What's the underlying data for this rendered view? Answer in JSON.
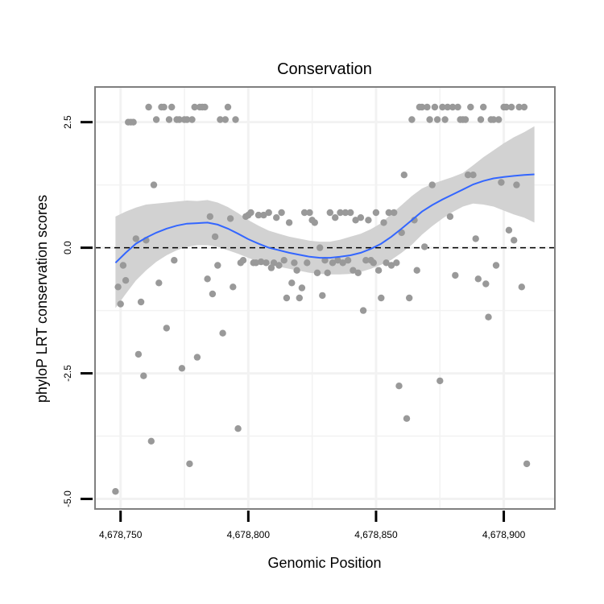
{
  "chart_data": {
    "type": "scatter",
    "title": "Conservation",
    "xlabel": "Genomic Position",
    "ylabel": "phyloP LRT conservation scores",
    "xlim": [
      4678740,
      4678920
    ],
    "ylim": [
      -5.2,
      3.2
    ],
    "x_ticks": [
      {
        "value": 4678750,
        "label": "4,678,750"
      },
      {
        "value": 4678800,
        "label": "4,678,800"
      },
      {
        "value": 4678850,
        "label": "4,678,850"
      },
      {
        "value": 4678900,
        "label": "4,678,900"
      }
    ],
    "y_ticks": [
      {
        "value": -5.0,
        "label": "-5.0"
      },
      {
        "value": -2.5,
        "label": "-2.5"
      },
      {
        "value": 0.0,
        "label": "0.0"
      },
      {
        "value": 2.5,
        "label": "2.5"
      }
    ],
    "grid": true,
    "reference_line": {
      "y": 0,
      "style": "dashed"
    },
    "colors": {
      "points": "#999999",
      "smooth": "#3366ff",
      "band": "#d2d2d2",
      "panel_border": "#7f7f7f",
      "grid": "#f2f2f2"
    },
    "points": [
      [
        4678748,
        -4.85
      ],
      [
        4678749,
        -0.78
      ],
      [
        4678750,
        -1.12
      ],
      [
        4678751,
        -0.35
      ],
      [
        4678752,
        -0.65
      ],
      [
        4678753,
        2.5
      ],
      [
        4678754,
        2.5
      ],
      [
        4678755,
        2.5
      ],
      [
        4678756,
        0.18
      ],
      [
        4678757,
        -2.12
      ],
      [
        4678758,
        -1.08
      ],
      [
        4678759,
        -2.55
      ],
      [
        4678760,
        0.15
      ],
      [
        4678761,
        2.8
      ],
      [
        4678762,
        -3.85
      ],
      [
        4678763,
        1.25
      ],
      [
        4678764,
        2.55
      ],
      [
        4678765,
        -0.7
      ],
      [
        4678766,
        2.8
      ],
      [
        4678767,
        2.8
      ],
      [
        4678768,
        -1.6
      ],
      [
        4678769,
        2.55
      ],
      [
        4678770,
        2.8
      ],
      [
        4678771,
        -0.25
      ],
      [
        4678772,
        2.55
      ],
      [
        4678773,
        2.55
      ],
      [
        4678774,
        -2.4
      ],
      [
        4678775,
        2.55
      ],
      [
        4678776,
        2.55
      ],
      [
        4678777,
        -4.3
      ],
      [
        4678778,
        2.55
      ],
      [
        4678779,
        2.8
      ],
      [
        4678780,
        -2.18
      ],
      [
        4678781,
        2.8
      ],
      [
        4678782,
        2.8
      ],
      [
        4678783,
        2.8
      ],
      [
        4678784,
        -0.62
      ],
      [
        4678785,
        0.62
      ],
      [
        4678786,
        -0.92
      ],
      [
        4678787,
        0.22
      ],
      [
        4678788,
        -0.35
      ],
      [
        4678789,
        2.55
      ],
      [
        4678790,
        -1.7
      ],
      [
        4678791,
        2.55
      ],
      [
        4678792,
        2.8
      ],
      [
        4678793,
        0.58
      ],
      [
        4678794,
        -0.78
      ],
      [
        4678795,
        2.55
      ],
      [
        4678796,
        -3.6
      ],
      [
        4678797,
        -0.3
      ],
      [
        4678798,
        -0.25
      ],
      [
        4678799,
        0.62
      ],
      [
        4678800,
        0.65
      ],
      [
        4678801,
        0.7
      ],
      [
        4678802,
        -0.3
      ],
      [
        4678803,
        -0.3
      ],
      [
        4678804,
        0.65
      ],
      [
        4678805,
        -0.28
      ],
      [
        4678806,
        0.65
      ],
      [
        4678807,
        -0.3
      ],
      [
        4678808,
        0.7
      ],
      [
        4678809,
        -0.4
      ],
      [
        4678810,
        -0.3
      ],
      [
        4678811,
        0.6
      ],
      [
        4678812,
        -0.35
      ],
      [
        4678813,
        0.7
      ],
      [
        4678814,
        -0.25
      ],
      [
        4678815,
        -1.0
      ],
      [
        4678816,
        0.5
      ],
      [
        4678817,
        -0.7
      ],
      [
        4678818,
        -0.3
      ],
      [
        4678819,
        -0.45
      ],
      [
        4678820,
        -1.0
      ],
      [
        4678821,
        -0.8
      ],
      [
        4678822,
        0.7
      ],
      [
        4678823,
        -0.3
      ],
      [
        4678824,
        0.7
      ],
      [
        4678825,
        0.55
      ],
      [
        4678826,
        0.5
      ],
      [
        4678827,
        -0.5
      ],
      [
        4678828,
        0.0
      ],
      [
        4678829,
        -0.95
      ],
      [
        4678830,
        -0.25
      ],
      [
        4678831,
        -0.5
      ],
      [
        4678832,
        0.7
      ],
      [
        4678833,
        -0.3
      ],
      [
        4678834,
        0.6
      ],
      [
        4678835,
        -0.25
      ],
      [
        4678836,
        0.7
      ],
      [
        4678837,
        -0.3
      ],
      [
        4678838,
        0.7
      ],
      [
        4678839,
        -0.25
      ],
      [
        4678840,
        0.7
      ],
      [
        4678841,
        -0.45
      ],
      [
        4678842,
        0.55
      ],
      [
        4678843,
        -0.5
      ],
      [
        4678844,
        0.6
      ],
      [
        4678845,
        -1.25
      ],
      [
        4678846,
        -0.25
      ],
      [
        4678847,
        0.55
      ],
      [
        4678848,
        -0.25
      ],
      [
        4678849,
        -0.3
      ],
      [
        4678850,
        0.7
      ],
      [
        4678851,
        -0.45
      ],
      [
        4678852,
        -1.0
      ],
      [
        4678853,
        0.5
      ],
      [
        4678854,
        -0.3
      ],
      [
        4678855,
        0.7
      ],
      [
        4678856,
        -0.35
      ],
      [
        4678857,
        0.7
      ],
      [
        4678858,
        -0.3
      ],
      [
        4678859,
        -2.75
      ],
      [
        4678860,
        0.3
      ],
      [
        4678861,
        1.45
      ],
      [
        4678862,
        -3.4
      ],
      [
        4678863,
        -1.0
      ],
      [
        4678864,
        2.55
      ],
      [
        4678865,
        0.55
      ],
      [
        4678866,
        -0.45
      ],
      [
        4678867,
        2.8
      ],
      [
        4678868,
        2.8
      ],
      [
        4678869,
        0.02
      ],
      [
        4678870,
        2.8
      ],
      [
        4678871,
        2.55
      ],
      [
        4678872,
        1.25
      ],
      [
        4678873,
        2.8
      ],
      [
        4678874,
        2.55
      ],
      [
        4678875,
        -2.65
      ],
      [
        4678876,
        2.8
      ],
      [
        4678877,
        2.55
      ],
      [
        4678878,
        2.8
      ],
      [
        4678879,
        0.62
      ],
      [
        4678880,
        2.8
      ],
      [
        4678881,
        -0.55
      ],
      [
        4678882,
        2.8
      ],
      [
        4678883,
        2.55
      ],
      [
        4678884,
        2.55
      ],
      [
        4678885,
        2.55
      ],
      [
        4678886,
        1.45
      ],
      [
        4678887,
        2.8
      ],
      [
        4678888,
        1.45
      ],
      [
        4678889,
        0.18
      ],
      [
        4678890,
        -0.62
      ],
      [
        4678891,
        2.55
      ],
      [
        4678892,
        2.8
      ],
      [
        4678893,
        -0.72
      ],
      [
        4678894,
        -1.38
      ],
      [
        4678895,
        2.55
      ],
      [
        4678896,
        2.55
      ],
      [
        4678897,
        -0.35
      ],
      [
        4678898,
        2.55
      ],
      [
        4678899,
        1.3
      ],
      [
        4678900,
        2.8
      ],
      [
        4678901,
        2.8
      ],
      [
        4678902,
        0.35
      ],
      [
        4678903,
        2.8
      ],
      [
        4678904,
        0.15
      ],
      [
        4678905,
        1.25
      ],
      [
        4678906,
        2.8
      ],
      [
        4678907,
        -0.78
      ],
      [
        4678908,
        2.8
      ],
      [
        4678909,
        -4.3
      ]
    ],
    "smooth": {
      "x": [
        4678748,
        4678752,
        4678756,
        4678760,
        4678764,
        4678768,
        4678772,
        4678776,
        4678780,
        4678784,
        4678788,
        4678792,
        4678796,
        4678800,
        4678804,
        4678808,
        4678812,
        4678816,
        4678820,
        4678824,
        4678828,
        4678832,
        4678836,
        4678840,
        4678844,
        4678848,
        4678852,
        4678856,
        4678860,
        4678864,
        4678868,
        4678872,
        4678876,
        4678880,
        4678884,
        4678888,
        4678892,
        4678896,
        4678900,
        4678904,
        4678908,
        4678912
      ],
      "y": [
        -0.3,
        -0.1,
        0.08,
        0.2,
        0.3,
        0.38,
        0.44,
        0.48,
        0.49,
        0.5,
        0.46,
        0.38,
        0.28,
        0.17,
        0.08,
        0.0,
        -0.05,
        -0.1,
        -0.14,
        -0.18,
        -0.2,
        -0.2,
        -0.18,
        -0.15,
        -0.1,
        -0.02,
        0.08,
        0.22,
        0.38,
        0.55,
        0.72,
        0.85,
        0.96,
        1.06,
        1.16,
        1.26,
        1.33,
        1.38,
        1.41,
        1.43,
        1.45,
        1.46
      ],
      "lower": [
        -1.2,
        -0.92,
        -0.65,
        -0.45,
        -0.28,
        -0.15,
        -0.05,
        0.02,
        0.05,
        0.05,
        0.02,
        -0.05,
        -0.12,
        -0.2,
        -0.28,
        -0.33,
        -0.38,
        -0.42,
        -0.46,
        -0.5,
        -0.52,
        -0.53,
        -0.53,
        -0.52,
        -0.48,
        -0.42,
        -0.34,
        -0.24,
        -0.1,
        0.06,
        0.26,
        0.43,
        0.58,
        0.71,
        0.82,
        0.88,
        0.86,
        0.82,
        0.74,
        0.66,
        0.6,
        0.5
      ],
      "upper": [
        0.62,
        0.72,
        0.8,
        0.86,
        0.88,
        0.9,
        0.92,
        0.94,
        0.93,
        0.95,
        0.9,
        0.81,
        0.69,
        0.55,
        0.44,
        0.34,
        0.28,
        0.22,
        0.18,
        0.14,
        0.12,
        0.12,
        0.16,
        0.22,
        0.28,
        0.37,
        0.49,
        0.67,
        0.85,
        1.03,
        1.18,
        1.27,
        1.34,
        1.41,
        1.49,
        1.64,
        1.8,
        1.94,
        2.08,
        2.2,
        2.3,
        2.42
      ]
    }
  }
}
